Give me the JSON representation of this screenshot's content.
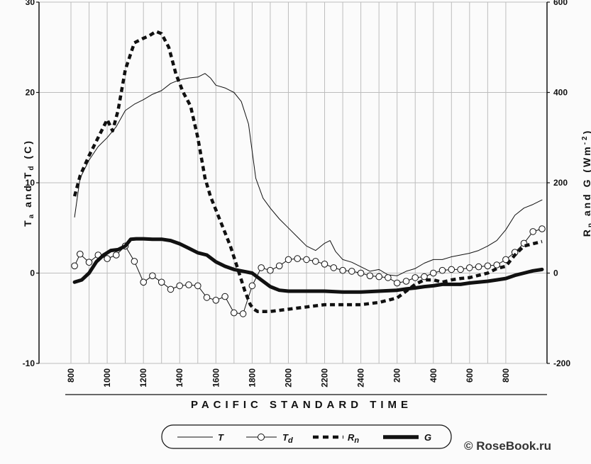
{
  "chart_data": {
    "type": "line",
    "xlabel": "PACIFIC STANDARD TIME",
    "ylabel_left": "T_a and T_d (C)",
    "ylabel_left_parts": [
      "T",
      "a",
      " and ",
      "T",
      "d",
      " (C)"
    ],
    "ylabel_right_parts": [
      "R",
      "n",
      " and ",
      "G (Wm",
      "-2",
      ")"
    ],
    "ylim_left": [
      -10,
      30
    ],
    "ylim_right": [
      -200,
      600
    ],
    "left_ticks": [
      "-10",
      "0",
      "10",
      "20",
      "30"
    ],
    "right_ticks": [
      "-200",
      "0",
      "200",
      "400",
      "600"
    ],
    "x_ticks": [
      "800",
      "1000",
      "1200",
      "1400",
      "1600",
      "1800",
      "2000",
      "2200",
      "2400",
      "200",
      "400",
      "600",
      "800"
    ],
    "x_range_hours": [
      8,
      34
    ],
    "grid": true,
    "legend_position": "bottom",
    "series": [
      {
        "name": "T",
        "axis": "left",
        "style": "thin",
        "x": [
          8.2,
          8.5,
          9,
          9.5,
          10,
          10.5,
          11,
          11.5,
          12,
          12.5,
          13,
          13.5,
          14,
          14.5,
          15,
          15.4,
          15.7,
          16,
          16.5,
          17,
          17.4,
          17.8,
          18.2,
          18.6,
          19,
          19.5,
          20,
          20.5,
          21,
          21.5,
          22,
          22.3,
          22.6,
          23,
          23.5,
          24,
          24.5,
          25,
          25.5,
          26,
          26.5,
          27,
          27.5,
          28,
          28.5,
          29,
          29.5,
          30,
          30.5,
          31,
          31.5,
          32,
          32.5,
          33,
          33.5,
          34
        ],
        "y": [
          6.2,
          10.5,
          12.5,
          14,
          15,
          16.2,
          18,
          18.7,
          19.2,
          19.8,
          20.2,
          21,
          21.4,
          21.6,
          21.7,
          22.1,
          21.6,
          20.8,
          20.5,
          20,
          19,
          16.5,
          10.5,
          8.3,
          7.2,
          6,
          5,
          4,
          3,
          2.5,
          3.3,
          3.6,
          2.4,
          1.5,
          1.2,
          0.7,
          0.2,
          0.4,
          -0.2,
          -0.3,
          0.2,
          0.5,
          1.1,
          1.5,
          1.5,
          1.8,
          2,
          2.2,
          2.5,
          3,
          3.6,
          4.8,
          6.4,
          7.2,
          7.6,
          8.1
        ]
      },
      {
        "name": "Td",
        "axis": "left",
        "style": "circles",
        "x": [
          8.2,
          8.5,
          9,
          9.5,
          10,
          10.5,
          11,
          11.5,
          12,
          12.5,
          13,
          13.5,
          14,
          14.5,
          15,
          15.5,
          16,
          16.5,
          17,
          17.5,
          18,
          18.5,
          19,
          19.5,
          20,
          20.5,
          21,
          21.5,
          22,
          22.5,
          23,
          23.5,
          24,
          24.5,
          25,
          25.5,
          26,
          26.5,
          27,
          27.5,
          28,
          28.5,
          29,
          29.5,
          30,
          30.5,
          31,
          31.5,
          32,
          32.5,
          33,
          33.5,
          34
        ],
        "y": [
          0.8,
          2.1,
          1.2,
          2,
          1.6,
          2,
          3,
          1.3,
          -1,
          -0.3,
          -1,
          -1.8,
          -1.4,
          -1.3,
          -1.4,
          -2.7,
          -3,
          -2.6,
          -4.4,
          -4.5,
          -1.4,
          0.6,
          0.3,
          0.8,
          1.5,
          1.6,
          1.5,
          1.3,
          1,
          0.6,
          0.3,
          0.2,
          0,
          -0.3,
          -0.4,
          -0.5,
          -1.1,
          -0.9,
          -0.5,
          -0.4,
          0,
          0.3,
          0.4,
          0.4,
          0.6,
          0.7,
          0.8,
          0.9,
          1.5,
          2.3,
          3.3,
          4.6,
          4.9
        ]
      },
      {
        "name": "Rn",
        "axis": "right",
        "style": "dashed-thick",
        "x": [
          8.2,
          8.5,
          9,
          9.5,
          10,
          10.3,
          10.6,
          11,
          11.5,
          12,
          12.3,
          12.7,
          13,
          13.4,
          13.8,
          14.2,
          14.6,
          15,
          15.4,
          15.7,
          16,
          16.4,
          16.8,
          17.2,
          17.6,
          17.9,
          18.1,
          18.3,
          18.6,
          19,
          20,
          21,
          22,
          23,
          24,
          25,
          26,
          26.5,
          27,
          27.5,
          28,
          28.5,
          29,
          29.5,
          30,
          30.5,
          31,
          31.5,
          32,
          32.5,
          33,
          33.5,
          34
        ],
        "y": [
          170,
          215,
          260,
          300,
          340,
          315,
          360,
          450,
          510,
          520,
          525,
          535,
          530,
          500,
          440,
          400,
          370,
          300,
          210,
          170,
          140,
          100,
          60,
          10,
          -40,
          -70,
          -80,
          -85,
          -85,
          -85,
          -80,
          -75,
          -70,
          -70,
          -70,
          -65,
          -55,
          -40,
          -25,
          -15,
          -15,
          -20,
          -15,
          -12,
          -10,
          -5,
          0,
          10,
          15,
          40,
          60,
          65,
          70
        ]
      },
      {
        "name": "G",
        "axis": "right",
        "style": "solid-thick",
        "x": [
          8.2,
          8.6,
          9,
          9.4,
          9.8,
          10.2,
          10.6,
          11,
          11.3,
          11.6,
          12,
          12.5,
          13,
          13.5,
          14,
          14.5,
          15,
          15.5,
          16,
          16.5,
          17,
          17.5,
          18,
          18.5,
          19,
          19.5,
          20,
          21,
          22,
          23,
          24,
          25,
          26,
          26.5,
          27,
          27.5,
          28,
          28.5,
          29,
          29.5,
          30,
          30.5,
          31,
          31.5,
          32,
          32.5,
          33,
          33.5,
          34
        ],
        "y": [
          -20,
          -15,
          0,
          25,
          40,
          50,
          52,
          60,
          75,
          76,
          76,
          75,
          75,
          72,
          65,
          55,
          45,
          40,
          25,
          15,
          8,
          4,
          0,
          -15,
          -30,
          -38,
          -40,
          -40,
          -40,
          -42,
          -42,
          -40,
          -38,
          -35,
          -33,
          -30,
          -28,
          -25,
          -25,
          -25,
          -22,
          -20,
          -18,
          -15,
          -12,
          -5,
          0,
          5,
          8
        ]
      }
    ]
  },
  "legend": {
    "items": [
      {
        "label": "T",
        "sub": ""
      },
      {
        "label": "T",
        "sub": "d"
      },
      {
        "label": "R",
        "sub": "n"
      },
      {
        "label": "G",
        "sub": ""
      }
    ]
  },
  "watermark": "© RoseBook.ru",
  "colors": {
    "ink": "#111111",
    "grid": "#bdbdbd",
    "background": "#fbfbfb"
  }
}
